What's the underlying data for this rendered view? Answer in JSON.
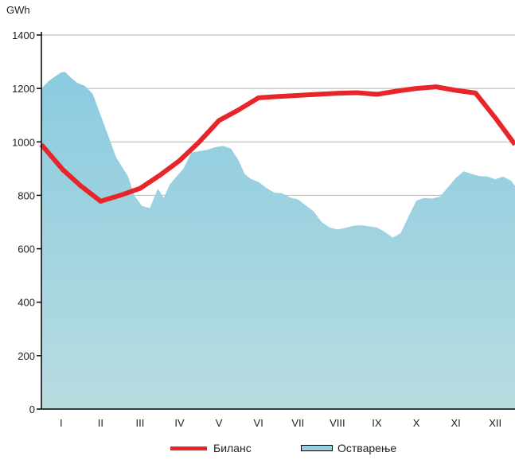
{
  "chart_data": {
    "type": "area",
    "ylabel": "GWh",
    "ylim": [
      0,
      1400
    ],
    "yticks": [
      0,
      200,
      400,
      600,
      800,
      1000,
      1200,
      1400
    ],
    "categories": [
      "I",
      "II",
      "III",
      "IV",
      "V",
      "VI",
      "VII",
      "VIII",
      "IX",
      "X",
      "XI",
      "XII"
    ],
    "grid": "horizontal",
    "legend_position": "bottom",
    "series": [
      {
        "name": "Биланс",
        "type": "line",
        "color": "#e8252b",
        "x": [
          0,
          0.55,
          1.0,
          1.5,
          2.0,
          2.5,
          3.0,
          3.5,
          4.0,
          4.5,
          5.0,
          5.5,
          6.0,
          6.5,
          7.0,
          7.5,
          8.0,
          8.5,
          9.0,
          9.5,
          10.0,
          10.5,
          11.0,
          11.5,
          12.0
        ],
        "values": [
          990,
          895,
          835,
          778,
          800,
          826,
          875,
          930,
          1000,
          1080,
          1120,
          1165,
          1170,
          1174,
          1178,
          1182,
          1184,
          1178,
          1190,
          1200,
          1206,
          1193,
          1183,
          1090,
          990
        ]
      },
      {
        "name": "Остварење",
        "type": "area",
        "color": "#92cde0",
        "x": [
          0,
          0.2,
          0.5,
          0.6,
          0.75,
          0.9,
          1.0,
          1.1,
          1.3,
          1.45,
          1.6,
          1.75,
          1.9,
          2.05,
          2.2,
          2.35,
          2.55,
          2.75,
          2.95,
          3.1,
          3.25,
          3.45,
          3.6,
          3.8,
          4.0,
          4.2,
          4.4,
          4.6,
          4.8,
          5.0,
          5.15,
          5.3,
          5.5,
          5.7,
          5.9,
          6.1,
          6.3,
          6.5,
          6.7,
          6.9,
          7.1,
          7.3,
          7.5,
          7.7,
          7.9,
          8.1,
          8.3,
          8.5,
          8.7,
          8.9,
          9.1,
          9.3,
          9.5,
          9.7,
          9.9,
          10.1,
          10.3,
          10.5,
          10.7,
          10.9,
          11.1,
          11.3,
          11.5,
          11.7,
          11.9,
          12.0
        ],
        "values": [
          1200,
          1230,
          1260,
          1262,
          1240,
          1222,
          1215,
          1210,
          1180,
          1120,
          1060,
          1000,
          940,
          905,
          870,
          800,
          760,
          752,
          825,
          790,
          840,
          875,
          900,
          960,
          965,
          970,
          980,
          985,
          975,
          930,
          880,
          862,
          850,
          828,
          810,
          808,
          792,
          785,
          762,
          740,
          700,
          680,
          672,
          678,
          686,
          688,
          684,
          680,
          663,
          642,
          658,
          720,
          780,
          790,
          788,
          795,
          830,
          865,
          890,
          880,
          872,
          870,
          860,
          870,
          855,
          835
        ]
      }
    ]
  }
}
